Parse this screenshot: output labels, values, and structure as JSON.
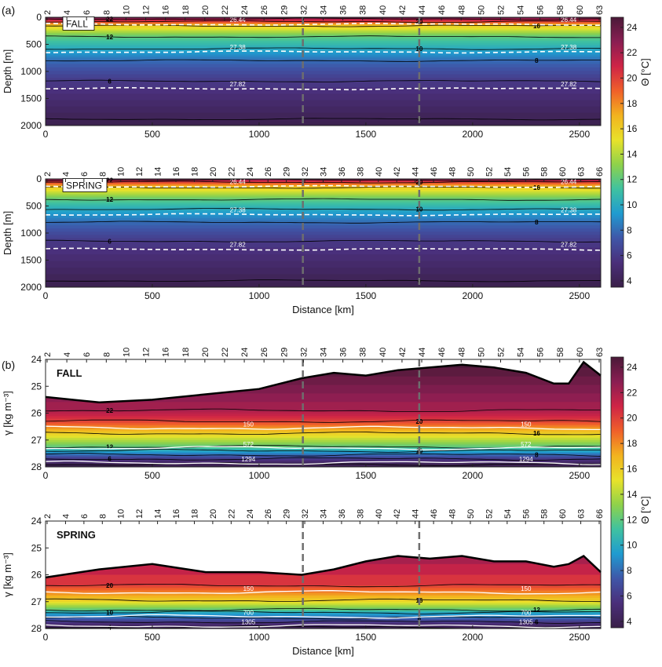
{
  "figure": {
    "panel_labels": [
      "(a)",
      "(b)"
    ],
    "theta_colorbar": {
      "label": "Θ [°C]",
      "ticks": [
        "24",
        "22",
        "20",
        "18",
        "16",
        "14",
        "12",
        "10",
        "8",
        "6",
        "4"
      ],
      "min": 3.5,
      "max": 24.8,
      "stops": [
        "#3a1f48",
        "#4a2f7a",
        "#3f56a8",
        "#1f9bd0",
        "#3fc2a0",
        "#8fd24a",
        "#e8e22a",
        "#f2b31f",
        "#f0602a",
        "#cf2446",
        "#8a1e52",
        "#4a1a38"
      ]
    }
  },
  "chart_data": [
    {
      "type": "heatmap",
      "id": "a_fall",
      "annotation": "FALL",
      "xlabel": "",
      "ylabel": "Depth [m]",
      "xlim": [
        0,
        2600
      ],
      "ylim": [
        2000,
        0
      ],
      "xticks": [
        "0",
        "500",
        "1000",
        "1500",
        "2000",
        "2500"
      ],
      "yticks": [
        "0",
        "500",
        "1000",
        "1500",
        "2000"
      ],
      "stations": [
        "2",
        "4",
        "6",
        "8",
        "10",
        "12",
        "16",
        "18",
        "20",
        "22",
        "24",
        "26",
        "29",
        "32",
        "34",
        "36",
        "38",
        "40",
        "42",
        "44",
        "46",
        "48",
        "50",
        "52",
        "54",
        "56",
        "58",
        "60",
        "63"
      ],
      "dashed_stations_km": [
        1205,
        1750
      ],
      "temperature_contours": [
        {
          "value": 22,
          "depth_m": 30,
          "labels": [
            "22"
          ]
        },
        {
          "value": 20,
          "depth_m": 80,
          "labels": [
            "20"
          ]
        },
        {
          "value": 16,
          "depth_m": 160,
          "labels": [
            "16"
          ]
        },
        {
          "value": 12,
          "depth_m": 360,
          "labels": [
            "12"
          ]
        },
        {
          "value": 10,
          "depth_m": 580,
          "labels": [
            "10"
          ]
        },
        {
          "value": 8,
          "depth_m": 800,
          "labels": [
            "8"
          ]
        },
        {
          "value": 6,
          "depth_m": 1180,
          "labels": [
            "6"
          ]
        },
        {
          "value": 4,
          "depth_m": 1880,
          "labels": [
            "4"
          ]
        }
      ],
      "density_isopycnals": [
        {
          "label": "26.44",
          "depth_m": 130
        },
        {
          "label": "27.38",
          "depth_m": 640
        },
        {
          "label": "27.82",
          "depth_m": 1320
        }
      ]
    },
    {
      "type": "heatmap",
      "id": "a_spring",
      "annotation": "SPRING",
      "xlabel": "Distance [km]",
      "ylabel": "Depth [m]",
      "xlim": [
        0,
        2600
      ],
      "ylim": [
        2000,
        0
      ],
      "xticks": [
        "0",
        "500",
        "1000",
        "1500",
        "2000",
        "2500"
      ],
      "yticks": [
        "0",
        "500",
        "1000",
        "1500",
        "2000"
      ],
      "stations": [
        "2",
        "4",
        "6",
        "8",
        "10",
        "12",
        "14",
        "16",
        "18",
        "20",
        "22",
        "24",
        "26",
        "29",
        "32",
        "34",
        "36",
        "38",
        "40",
        "42",
        "44",
        "46",
        "48",
        "50",
        "52",
        "54",
        "56",
        "58",
        "60",
        "63",
        "66"
      ],
      "dashed_stations_km": [
        1205,
        1750
      ],
      "temperature_contours": [
        {
          "value": 22,
          "depth_m": 20,
          "labels": [
            "22"
          ]
        },
        {
          "value": 20,
          "depth_m": 60,
          "labels": [
            "20"
          ]
        },
        {
          "value": 16,
          "depth_m": 160,
          "labels": [
            "16"
          ]
        },
        {
          "value": 12,
          "depth_m": 380,
          "labels": [
            "12"
          ]
        },
        {
          "value": 10,
          "depth_m": 560,
          "labels": [
            "10"
          ]
        },
        {
          "value": 8,
          "depth_m": 800,
          "labels": [
            "8"
          ]
        },
        {
          "value": 6,
          "depth_m": 1150,
          "labels": [
            "6"
          ]
        },
        {
          "value": 4,
          "depth_m": 1880,
          "labels": [
            "4"
          ]
        }
      ],
      "density_isopycnals": [
        {
          "label": "26.44",
          "depth_m": 140
        },
        {
          "label": "27.38",
          "depth_m": 660
        },
        {
          "label": "27.82",
          "depth_m": 1300
        }
      ]
    },
    {
      "type": "heatmap",
      "id": "b_fall",
      "annotation": "FALL",
      "xlabel": "",
      "ylabel": "γ [kg m⁻³]",
      "xlim": [
        0,
        2600
      ],
      "ylim": [
        28,
        24
      ],
      "xticks": [
        "0",
        "500",
        "1000",
        "1500",
        "2000",
        "2500"
      ],
      "yticks": [
        "24",
        "25",
        "26",
        "27",
        "28"
      ],
      "stations": [
        "2",
        "4",
        "6",
        "8",
        "10",
        "12",
        "16",
        "18",
        "20",
        "22",
        "24",
        "26",
        "29",
        "32",
        "34",
        "36",
        "38",
        "40",
        "42",
        "44",
        "46",
        "48",
        "50",
        "52",
        "54",
        "56",
        "58",
        "60",
        "63"
      ],
      "dashed_stations_km": [
        1205,
        1750
      ],
      "surface_density": {
        "x": [
          0,
          250,
          500,
          750,
          1000,
          1200,
          1350,
          1500,
          1650,
          1800,
          1950,
          2100,
          2250,
          2380,
          2450,
          2520,
          2600
        ],
        "y": [
          25.4,
          25.6,
          25.5,
          25.3,
          25.1,
          24.7,
          24.5,
          24.6,
          24.4,
          24.3,
          24.2,
          24.3,
          24.5,
          24.9,
          24.9,
          24.1,
          24.6
        ]
      },
      "temperature_contours": [
        {
          "value": 22,
          "density": 25.9,
          "labels": [
            "22"
          ]
        },
        {
          "value": 20,
          "density": 26.3,
          "labels": [
            "20"
          ]
        },
        {
          "value": 16,
          "density": 26.75,
          "labels": [
            "16"
          ]
        },
        {
          "value": 12,
          "density": 27.25,
          "labels": [
            "12"
          ]
        },
        {
          "value": 10,
          "density": 27.4,
          "labels": [
            "10"
          ]
        },
        {
          "value": 8,
          "density": 27.55,
          "labels": [
            "8"
          ]
        },
        {
          "value": 6,
          "density": 27.7,
          "labels": [
            "6"
          ]
        },
        {
          "value": 4,
          "density": 27.9,
          "labels": [
            "4"
          ]
        }
      ],
      "depth_contours": [
        {
          "label": "150",
          "density": 26.55
        },
        {
          "label": "572",
          "density": 27.3
        },
        {
          "label": "1294",
          "density": 27.85
        }
      ]
    },
    {
      "type": "heatmap",
      "id": "b_spring",
      "annotation": "SPRING",
      "xlabel": "Distance [km]",
      "ylabel": "γ [kg m⁻³]",
      "xlim": [
        0,
        2600
      ],
      "ylim": [
        28,
        24
      ],
      "xticks": [
        "0",
        "500",
        "1000",
        "1500",
        "2000",
        "2500"
      ],
      "yticks": [
        "24",
        "25",
        "26",
        "27",
        "28"
      ],
      "stations": [
        "2",
        "4",
        "6",
        "8",
        "10",
        "12",
        "14",
        "16",
        "18",
        "20",
        "22",
        "24",
        "26",
        "29",
        "32",
        "34",
        "36",
        "38",
        "40",
        "42",
        "44",
        "46",
        "48",
        "50",
        "52",
        "54",
        "56",
        "58",
        "60",
        "63",
        "66"
      ],
      "dashed_stations_km": [
        1205,
        1750
      ],
      "surface_density": {
        "x": [
          0,
          250,
          500,
          750,
          1000,
          1200,
          1350,
          1500,
          1650,
          1800,
          1950,
          2100,
          2250,
          2380,
          2450,
          2520,
          2600
        ],
        "y": [
          26.1,
          25.8,
          25.6,
          25.9,
          25.9,
          26.0,
          25.8,
          25.5,
          25.3,
          25.4,
          25.3,
          25.5,
          25.5,
          25.7,
          25.6,
          25.3,
          25.9
        ]
      },
      "temperature_contours": [
        {
          "value": 20,
          "density": 26.4,
          "labels": [
            "20"
          ]
        },
        {
          "value": 16,
          "density": 26.95,
          "labels": [
            "16"
          ]
        },
        {
          "value": 12,
          "density": 27.3,
          "labels": [
            "12"
          ]
        },
        {
          "value": 10,
          "density": 27.4,
          "labels": [
            "10"
          ]
        },
        {
          "value": 8,
          "density": 27.6,
          "labels": [
            "8"
          ]
        },
        {
          "value": 6,
          "density": 27.75,
          "labels": [
            "6"
          ]
        },
        {
          "value": 4,
          "density": 27.95,
          "labels": [
            "4"
          ]
        }
      ],
      "depth_contours": [
        {
          "label": "150",
          "density": 26.65
        },
        {
          "label": "700",
          "density": 27.55
        },
        {
          "label": "1305",
          "density": 27.9
        }
      ]
    }
  ]
}
